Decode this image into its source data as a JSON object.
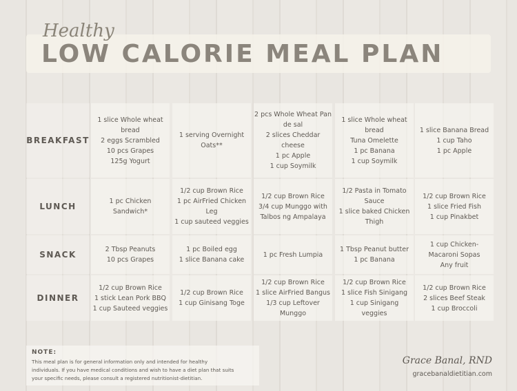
{
  "header": {
    "script": "Healthy",
    "title": "LOW CALORIE MEAL PLAN"
  },
  "table": {
    "rows": [
      {
        "label": "BREAKFAST",
        "cells": [
          [
            "1 slice Whole wheat",
            "bread",
            "2 eggs Scrambled",
            "10 pcs Grapes",
            "125g Yogurt"
          ],
          [
            "1 serving Overnight",
            "Oats**"
          ],
          [
            "2 pcs Whole Wheat Pan",
            "de sal",
            "2 slices Cheddar cheese",
            "1 pc Apple",
            "1 cup Soymilk"
          ],
          [
            "1 slice Whole wheat",
            "bread",
            "Tuna Omelette",
            "1 pc Banana",
            "1 cup Soymilk"
          ],
          [
            "1 slice Banana Bread",
            "1 cup Taho",
            "1 pc Apple"
          ]
        ]
      },
      {
        "label": "LUNCH",
        "cells": [
          [
            "1 pc Chicken",
            "Sandwich*"
          ],
          [
            "1/2 cup Brown Rice",
            "1 pc AirFried Chicken",
            "Leg",
            "1 cup sauteed veggies"
          ],
          [
            "1/2 cup Brown Rice",
            "3/4 cup Munggo with",
            "Talbos ng Ampalaya"
          ],
          [
            "1/2 Pasta in Tomato",
            "Sauce",
            "1 slice baked Chicken",
            "Thigh"
          ],
          [
            "1/2 cup Brown Rice",
            "1 slice Fried Fish",
            "1 cup Pinakbet"
          ]
        ]
      },
      {
        "label": "SNACK",
        "cells": [
          [
            "2 Tbsp Peanuts",
            "10 pcs Grapes"
          ],
          [
            "1 pc Boiled egg",
            "1 slice Banana cake"
          ],
          [
            "1 pc Fresh Lumpia"
          ],
          [
            "1 Tbsp Peanut butter",
            "1 pc Banana"
          ],
          [
            "1 cup Chicken-",
            "Macaroni Sopas",
            "Any fruit"
          ]
        ]
      },
      {
        "label": "DINNER",
        "cells": [
          [
            "1/2 cup Brown Rice",
            "1 stick Lean Pork BBQ",
            "1 cup Sauteed veggies"
          ],
          [
            "1/2 cup Brown Rice",
            "1 cup Ginisang Toge"
          ],
          [
            "1/2 cup Brown Rice",
            "1 slice AirFried Bangus",
            "1/3 cup Leftover",
            "Munggo"
          ],
          [
            "1/2 cup Brown Rice",
            "1 slice Fish Sinigang",
            "1 cup Sinigang",
            "veggies"
          ],
          [
            "1/2 cup Brown Rice",
            "2 slices Beef Steak",
            "1 cup Broccoli"
          ]
        ]
      }
    ]
  },
  "note": {
    "title": "NOTE:",
    "lines": [
      "This meal plan is for general information only and intended for healthy",
      "individuals. If you have medical conditions and wish to have a diet plan that suits",
      "your specific needs, please consult a registered nutritionist-dietitian."
    ]
  },
  "footer": {
    "author": "Grace Banal, RND",
    "website": "gracebanaldietitian.com"
  }
}
